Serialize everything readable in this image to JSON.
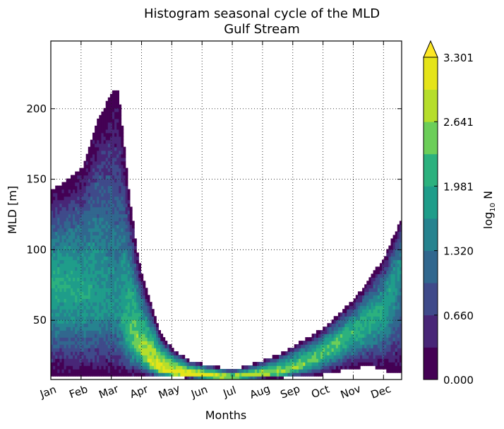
{
  "chart_data": {
    "type": "heatmap",
    "title": "Histogram seasonal cycle of the MLD",
    "subtitle": "Gulf Stream",
    "xlabel": "Months",
    "ylabel": "MLD [m]",
    "x_categories": [
      "Jan",
      "Feb",
      "Mar",
      "Apr",
      "May",
      "Jun",
      "Jul",
      "Aug",
      "Sep",
      "Oct",
      "Nov",
      "Dec"
    ],
    "x_range": [
      0,
      11.6
    ],
    "ylim": [
      8,
      248
    ],
    "y_ticks": [
      50,
      100,
      150,
      200
    ],
    "grid": true,
    "colorbar": {
      "label_main": "log",
      "label_sub": "10",
      "label_tail": " N",
      "range": [
        0,
        3.301
      ],
      "tick_values": [
        0.0,
        0.66,
        1.32,
        1.981,
        2.641,
        3.301
      ],
      "tick_labels": [
        "0.000",
        "0.660",
        "1.320",
        "1.981",
        "2.641",
        "3.301"
      ],
      "extend": "max",
      "colors": [
        "#440154",
        "#482677",
        "#3f4a8a",
        "#31678e",
        "#26838f",
        "#1f9d8a",
        "#2cb17e",
        "#6cce59",
        "#b6de2b",
        "#e5e419"
      ],
      "extend_color": "#fde725"
    },
    "mld_envelope": {
      "x": [
        0.0,
        0.5,
        1.0,
        1.5,
        2.0,
        2.2,
        2.5,
        2.8,
        3.0,
        3.3,
        3.6,
        4.0,
        4.5,
        5.0,
        5.5,
        6.0,
        6.5,
        7.0,
        7.5,
        8.0,
        8.5,
        9.0,
        9.5,
        10.0,
        10.5,
        11.0,
        11.3,
        11.6
      ],
      "top": [
        142,
        150,
        158,
        192,
        212,
        212,
        150,
        100,
        80,
        60,
        40,
        30,
        22,
        19,
        17,
        15,
        18,
        22,
        26,
        32,
        38,
        45,
        55,
        65,
        80,
        95,
        110,
        125
      ],
      "core": [
        75,
        72,
        70,
        66,
        60,
        55,
        45,
        35,
        28,
        20,
        15,
        13,
        12,
        11,
        10,
        10,
        11,
        12,
        13,
        16,
        21,
        28,
        35,
        43,
        50,
        58,
        78,
        90
      ],
      "bottom": [
        10,
        10,
        10,
        10,
        10,
        10,
        10,
        10,
        10,
        10,
        10,
        10,
        9,
        9,
        9,
        9,
        9,
        9,
        9,
        10,
        10,
        12,
        14,
        16,
        18,
        15,
        12,
        12
      ],
      "peak_log10N": [
        2.0,
        2.0,
        1.9,
        1.8,
        1.6,
        1.6,
        2.2,
        2.5,
        2.7,
        3.0,
        3.2,
        3.3,
        3.3,
        3.3,
        3.2,
        3.0,
        2.9,
        2.8,
        2.7,
        2.6,
        2.5,
        2.4,
        2.3,
        2.2,
        2.1,
        2.0,
        1.8,
        1.6
      ]
    }
  }
}
